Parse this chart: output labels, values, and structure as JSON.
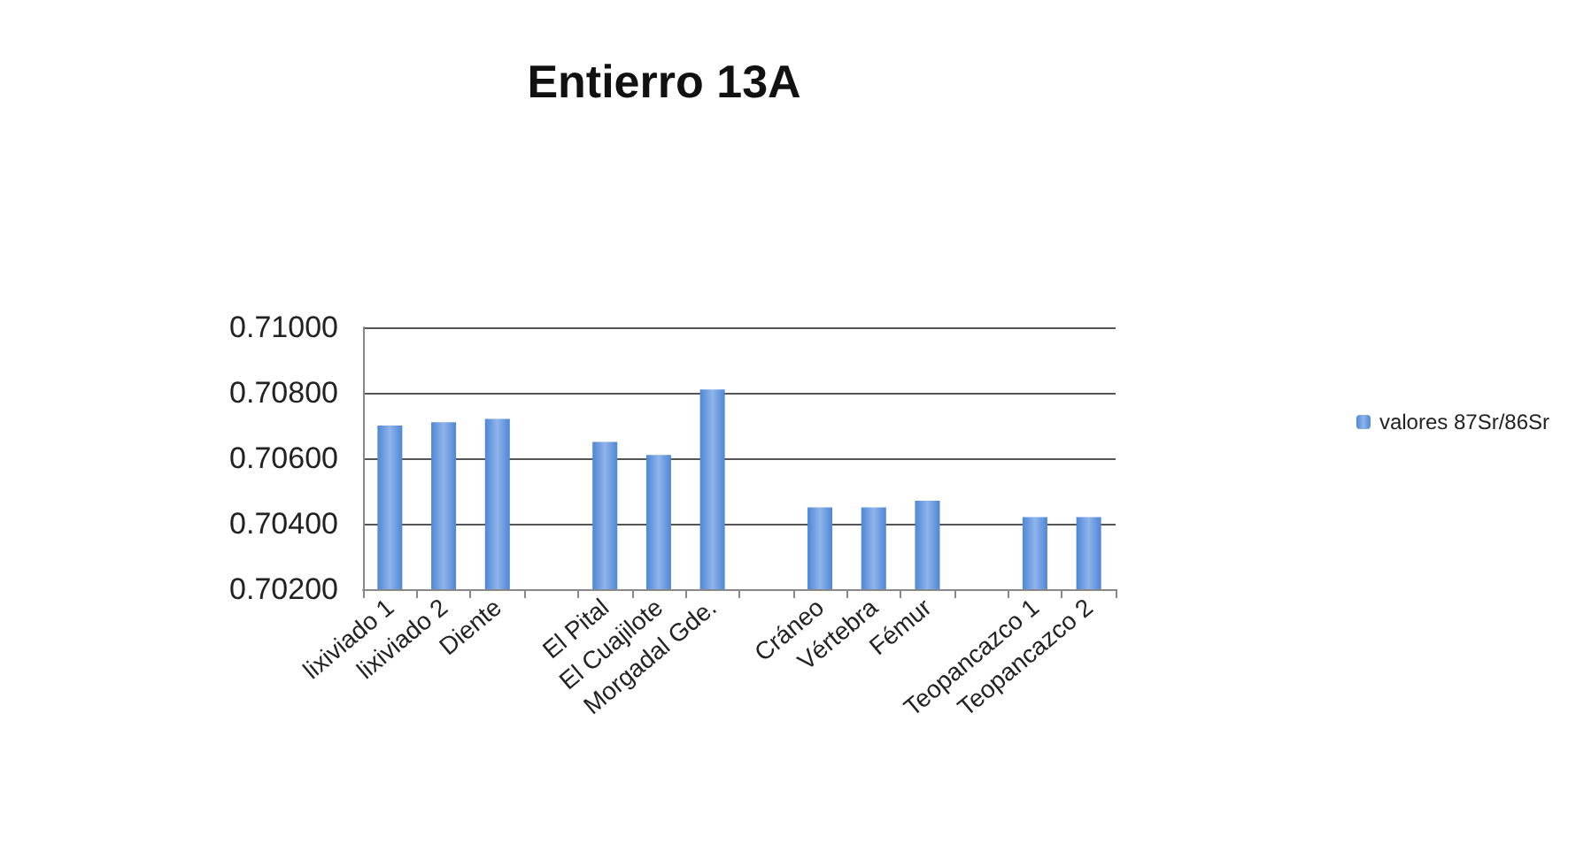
{
  "chart_data": {
    "type": "bar",
    "title": "Entierro 13A",
    "categories": [
      "lixiviado 1",
      "lixiviado 2",
      "Diente",
      null,
      "El Pital",
      "El Cuajilote",
      "Morgadal Gde.",
      null,
      "Cráneo",
      "Vértebra",
      "Fémur",
      null,
      "Teopancazco 1",
      "Teopancazco 2"
    ],
    "series": [
      {
        "name": "valores 87Sr/86Sr",
        "color": "#4f86d6",
        "values": [
          0.707,
          0.7071,
          0.7072,
          null,
          0.7065,
          0.7061,
          0.7081,
          null,
          0.7045,
          0.7045,
          0.7047,
          null,
          0.7042,
          0.7042
        ]
      }
    ],
    "ylim": [
      0.702,
      0.71
    ],
    "yticks": [
      {
        "value": 0.702,
        "label": "0.70200"
      },
      {
        "value": 0.704,
        "label": "0.70400"
      },
      {
        "value": 0.706,
        "label": "0.70600"
      },
      {
        "value": 0.708,
        "label": "0.70800"
      },
      {
        "value": 0.71,
        "label": "0.71000"
      }
    ],
    "grid": "y",
    "legend": "right"
  }
}
